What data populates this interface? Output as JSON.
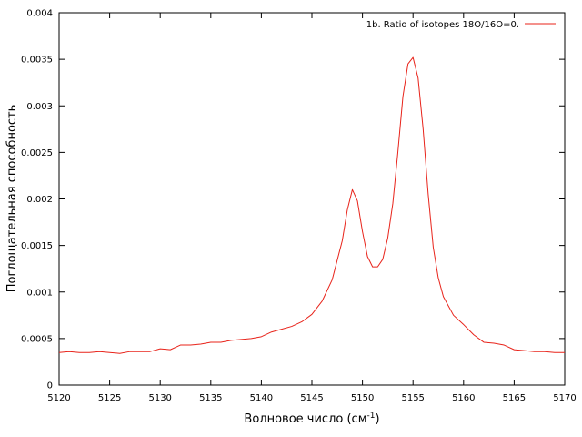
{
  "chart_data": {
    "type": "line",
    "title": "",
    "xlabel": "Волновое число (см",
    "xlabel_sup": "-1",
    "xlabel_close": ")",
    "ylabel": "Поглощательная способность",
    "xlim": [
      5120,
      5170
    ],
    "ylim": [
      0,
      0.004
    ],
    "xticks": [
      "5120",
      "5125",
      "5130",
      "5135",
      "5140",
      "5145",
      "5150",
      "5155",
      "5160",
      "5165",
      "5170"
    ],
    "yticks": [
      "0",
      "0.0005",
      "0.001",
      "0.0015",
      "0.002",
      "0.0025",
      "0.003",
      "0.0035",
      "0.004"
    ],
    "grid": false,
    "legend_position": "top-right",
    "series": [
      {
        "name": "1b. Ratio of isotopes 18O/16O=0.",
        "color": "#e8231a",
        "x": [
          5120,
          5121,
          5122,
          5123,
          5124,
          5125,
          5126,
          5127,
          5128,
          5129,
          5130,
          5131,
          5132,
          5133,
          5134,
          5135,
          5136,
          5137,
          5138,
          5139,
          5140,
          5141,
          5142,
          5143,
          5144,
          5145,
          5146,
          5147,
          5148,
          5148.5,
          5149,
          5149.5,
          5150,
          5150.5,
          5151,
          5151.5,
          5152,
          5152.5,
          5153,
          5153.5,
          5154,
          5154.5,
          5155,
          5155.5,
          5156,
          5156.5,
          5157,
          5157.5,
          5158,
          5159,
          5160,
          5161,
          5162,
          5163,
          5164,
          5165,
          5166,
          5167,
          5168,
          5169,
          5170
        ],
        "y": [
          0.00035,
          0.00036,
          0.00035,
          0.00035,
          0.00036,
          0.00035,
          0.00034,
          0.00036,
          0.00036,
          0.00036,
          0.00039,
          0.00038,
          0.00043,
          0.00043,
          0.00044,
          0.00046,
          0.00046,
          0.00048,
          0.00049,
          0.0005,
          0.00052,
          0.00057,
          0.0006,
          0.00063,
          0.00068,
          0.00076,
          0.0009,
          0.00113,
          0.00155,
          0.00188,
          0.0021,
          0.00198,
          0.00165,
          0.00138,
          0.00127,
          0.00127,
          0.00135,
          0.00158,
          0.00195,
          0.0025,
          0.0031,
          0.00345,
          0.00352,
          0.0033,
          0.00275,
          0.00205,
          0.00148,
          0.00115,
          0.00095,
          0.00075,
          0.00065,
          0.00054,
          0.00046,
          0.00045,
          0.00043,
          0.00038,
          0.00037,
          0.00036,
          0.00036,
          0.00035,
          0.00035
        ]
      }
    ]
  }
}
